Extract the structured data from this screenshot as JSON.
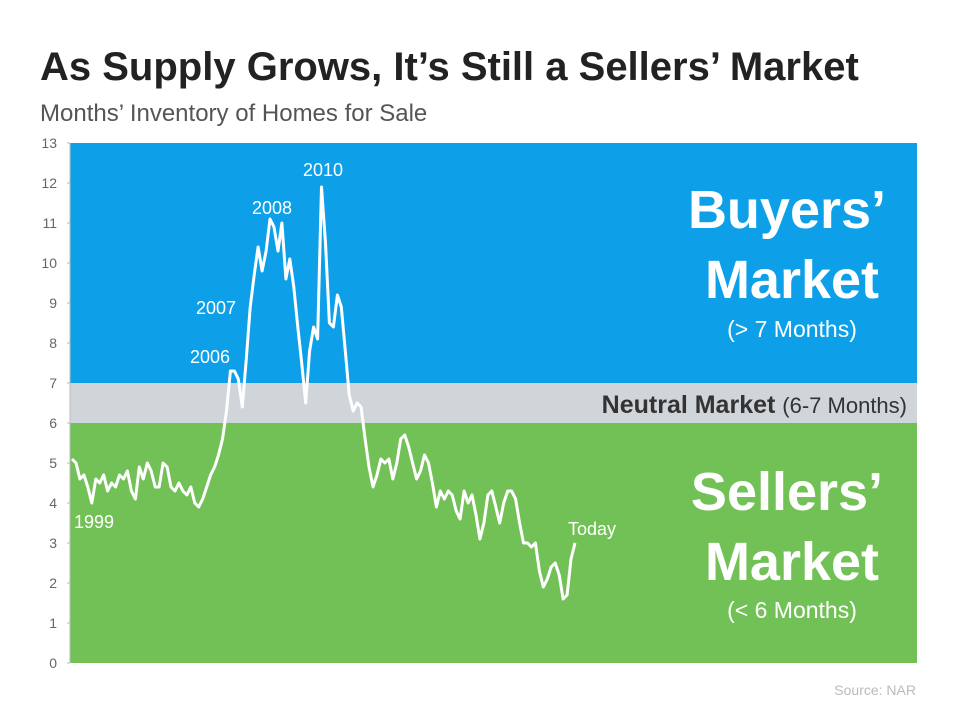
{
  "chart_data": {
    "type": "line",
    "title": "As Supply Grows, It’s Still a Sellers’ Market",
    "subtitle": "Months’ Inventory of Homes for Sale",
    "source": "Source: NAR",
    "ylim": [
      0,
      13
    ],
    "yticks": [
      0,
      1,
      2,
      3,
      4,
      5,
      6,
      7,
      8,
      9,
      10,
      11,
      12,
      13
    ],
    "color": "#ffffff",
    "zones": [
      {
        "range": [
          7,
          13
        ],
        "color": "#0da0e8",
        "lines": [
          "Buyers’",
          "Market",
          "(> 7 Months)"
        ]
      },
      {
        "range": [
          6,
          7
        ],
        "color": "#d0d5d9",
        "lines": [
          "Neutral Market",
          "(6-7 Months)"
        ]
      },
      {
        "range": [
          0,
          6
        ],
        "color": "#72c156",
        "lines": [
          "Sellers’",
          "Market",
          "(< 6 Months)"
        ]
      }
    ],
    "annotations": [
      "1999",
      "2006",
      "2007",
      "2008",
      "2010",
      "Today"
    ],
    "values": [
      5.1,
      5.0,
      4.6,
      4.7,
      4.4,
      4.0,
      4.6,
      4.5,
      4.7,
      4.3,
      4.5,
      4.4,
      4.7,
      4.6,
      4.8,
      4.3,
      4.1,
      4.9,
      4.6,
      5.0,
      4.8,
      4.4,
      4.4,
      5.0,
      4.9,
      4.4,
      4.3,
      4.5,
      4.3,
      4.2,
      4.4,
      4.0,
      3.9,
      4.1,
      4.4,
      4.7,
      4.9,
      5.2,
      5.6,
      6.3,
      7.3,
      7.3,
      7.1,
      6.4,
      7.6,
      8.9,
      9.7,
      10.4,
      9.8,
      10.3,
      11.1,
      10.9,
      10.3,
      11.0,
      9.6,
      10.1,
      9.4,
      8.4,
      7.5,
      6.5,
      7.8,
      8.4,
      8.1,
      11.9,
      10.5,
      8.5,
      8.4,
      9.2,
      8.9,
      7.8,
      6.7,
      6.3,
      6.5,
      6.4,
      5.6,
      4.9,
      4.4,
      4.7,
      5.1,
      5.0,
      5.1,
      4.6,
      5.0,
      5.6,
      5.7,
      5.4,
      5.0,
      4.6,
      4.8,
      5.2,
      5.0,
      4.5,
      3.9,
      4.3,
      4.1,
      4.3,
      4.2,
      3.8,
      3.6,
      4.3,
      4.0,
      4.2,
      3.7,
      3.1,
      3.5,
      4.2,
      4.3,
      3.9,
      3.5,
      4.0,
      4.3,
      4.3,
      4.1,
      3.5,
      3.0,
      3.0,
      2.9,
      3.0,
      2.3,
      1.9,
      2.1,
      2.4,
      2.5,
      2.2,
      1.6,
      1.7,
      2.6,
      3.0
    ]
  }
}
